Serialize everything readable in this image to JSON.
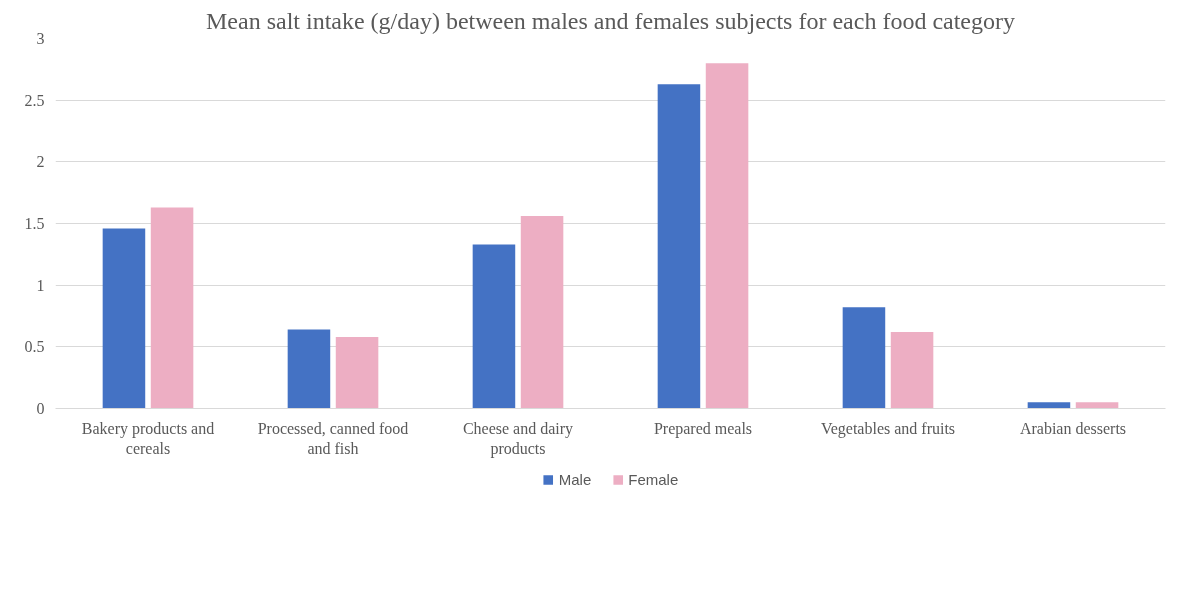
{
  "chart_data": {
    "type": "bar",
    "title": "Mean salt intake (g/day) between males and females subjects for each food category",
    "categories": [
      "Bakery products and cereals",
      "Processed, canned food and fish",
      "Cheese and dairy products",
      "Prepared meals",
      "Vegetables and fruits",
      "Arabian desserts"
    ],
    "series": [
      {
        "name": "Male",
        "color": "#4472c4",
        "values": [
          1.46,
          0.64,
          1.33,
          2.63,
          0.82,
          0.05
        ]
      },
      {
        "name": "Female",
        "color": "#edaec3",
        "values": [
          1.63,
          0.58,
          1.56,
          2.8,
          0.62,
          0.05
        ]
      }
    ],
    "ylim": [
      0,
      3
    ],
    "yticks": [
      0,
      0.5,
      1,
      1.5,
      2,
      2.5,
      3
    ],
    "grid": "y",
    "legend": "bottom"
  }
}
